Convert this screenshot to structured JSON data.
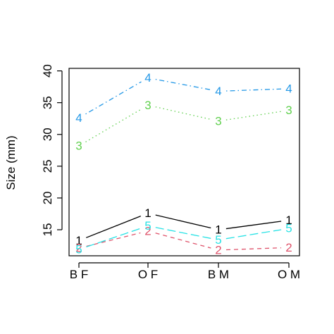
{
  "chart_data": {
    "type": "line",
    "title": "",
    "xlabel": "",
    "ylabel": "Size (mm)",
    "categories": [
      "B F",
      "O F",
      "B M",
      "O M"
    ],
    "ylim": [
      10.9,
      40.4
    ],
    "yticks": [
      15,
      20,
      25,
      30,
      35,
      40
    ],
    "grid": false,
    "legend": "none",
    "series": [
      {
        "label": "1",
        "color": "#000000",
        "dash": "solid",
        "values": [
          13.3,
          17.6,
          15.0,
          16.5
        ]
      },
      {
        "label": "2",
        "color": "#DF536B",
        "dash": "dashed",
        "values": [
          12.1,
          14.8,
          11.8,
          12.2
        ]
      },
      {
        "label": "3",
        "color": "#61D04F",
        "dash": "dotted",
        "values": [
          28.2,
          34.6,
          32.1,
          33.8
        ]
      },
      {
        "label": "4",
        "color": "#2297E6",
        "dash": "dotdash",
        "values": [
          32.6,
          38.9,
          36.8,
          37.2
        ]
      },
      {
        "label": "5",
        "color": "#28E2E5",
        "dash": "longdash",
        "values": [
          11.9,
          15.6,
          13.4,
          15.2
        ]
      }
    ]
  }
}
